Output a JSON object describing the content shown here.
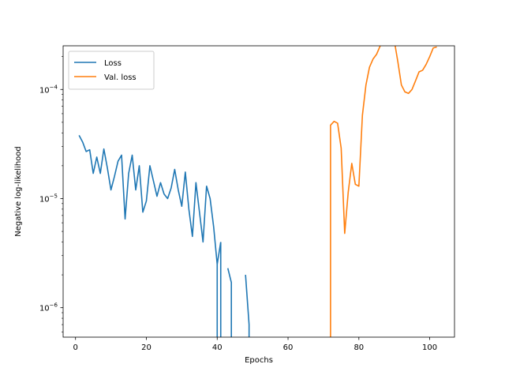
{
  "chart_data": {
    "type": "line",
    "xlabel": "Epochs",
    "ylabel": "Negative log-likelihood",
    "xlim": [
      -3.5,
      107
    ],
    "ylim_log10": [
      -6.27,
      -3.6
    ],
    "yscale": "log",
    "x_ticks": [
      0,
      20,
      40,
      60,
      80,
      100
    ],
    "x_tick_labels": [
      "0",
      "20",
      "40",
      "60",
      "80",
      "100"
    ],
    "y_ticks": [
      1e-06,
      1e-05,
      0.0001
    ],
    "y_tick_labels": [
      {
        "base": "10",
        "exp": "−6"
      },
      {
        "base": "10",
        "exp": "−5"
      },
      {
        "base": "10",
        "exp": "−4"
      }
    ],
    "grid": false,
    "legend_position": "upper left",
    "series": [
      {
        "name": "Loss",
        "color": "#1f77b4",
        "segments": [
          {
            "x": [
              1,
              2,
              3,
              4,
              5,
              6,
              7,
              8,
              9,
              10,
              11,
              12,
              13,
              14,
              15,
              16,
              17,
              18,
              19,
              20,
              21,
              22,
              23,
              24,
              25,
              26,
              27,
              28,
              29,
              30,
              31,
              32,
              33,
              34,
              35,
              36,
              37,
              38,
              39,
              40,
              41
            ],
            "y": [
              3.8e-05,
              3.3e-05,
              2.7e-05,
              2.8e-05,
              1.7e-05,
              2.4e-05,
              1.7e-05,
              2.85e-05,
              1.9e-05,
              1.2e-05,
              1.6e-05,
              2.2e-05,
              2.5e-05,
              6.5e-06,
              1.7e-05,
              2.5e-05,
              1.2e-05,
              2e-05,
              7.5e-06,
              9.5e-06,
              2e-05,
              1.45e-05,
              1.05e-05,
              1.4e-05,
              1.1e-05,
              1e-05,
              1.25e-05,
              1.85e-05,
              1.2e-05,
              8.5e-06,
              1.75e-05,
              8e-06,
              4.5e-06,
              1.4e-05,
              7.5e-06,
              4e-06,
              1.3e-05,
              1e-05,
              5.5e-06,
              2.5e-06,
              4e-06
            ]
          },
          {
            "x": [
              40
            ],
            "y": [
              2.5e-06
            ],
            "drop_to_bottom": true
          },
          {
            "x": [
              41
            ],
            "y": [
              4e-06
            ],
            "drop_to_bottom": true
          },
          {
            "x": [
              43,
              44
            ],
            "y": [
              2.3e-06,
              1.7e-06
            ],
            "drop_to_bottom": true
          },
          {
            "x": [
              48,
              49
            ],
            "y": [
              2e-06,
              7e-07
            ],
            "drop_to_bottom": true
          }
        ]
      },
      {
        "name": "Val. loss",
        "color": "#ff7f0e",
        "segments": [
          {
            "x": [
              72,
              73,
              74,
              75,
              76,
              77,
              78,
              79,
              80,
              81,
              82,
              83,
              84,
              85,
              86,
              87,
              88,
              89,
              90,
              91,
              92,
              93,
              94,
              95,
              96,
              97,
              98,
              99,
              100,
              101,
              102
            ],
            "y": [
              4.7e-05,
              5.1e-05,
              4.9e-05,
              2.9e-05,
              4.8e-06,
              1.15e-05,
              2.1e-05,
              1.35e-05,
              1.3e-05,
              5.8e-05,
              0.00011,
              0.00016,
              0.00019,
              0.00021,
              0.00025,
              0.000305,
              0.00033,
              0.00032,
              0.00028,
              0.00018,
              0.00011,
              9.5e-05,
              9.2e-05,
              0.0001,
              0.00012,
              0.000145,
              0.00015,
              0.00017,
              0.0002,
              0.00024,
              0.000245
            ],
            "rise_from_bottom": true
          }
        ]
      }
    ]
  }
}
